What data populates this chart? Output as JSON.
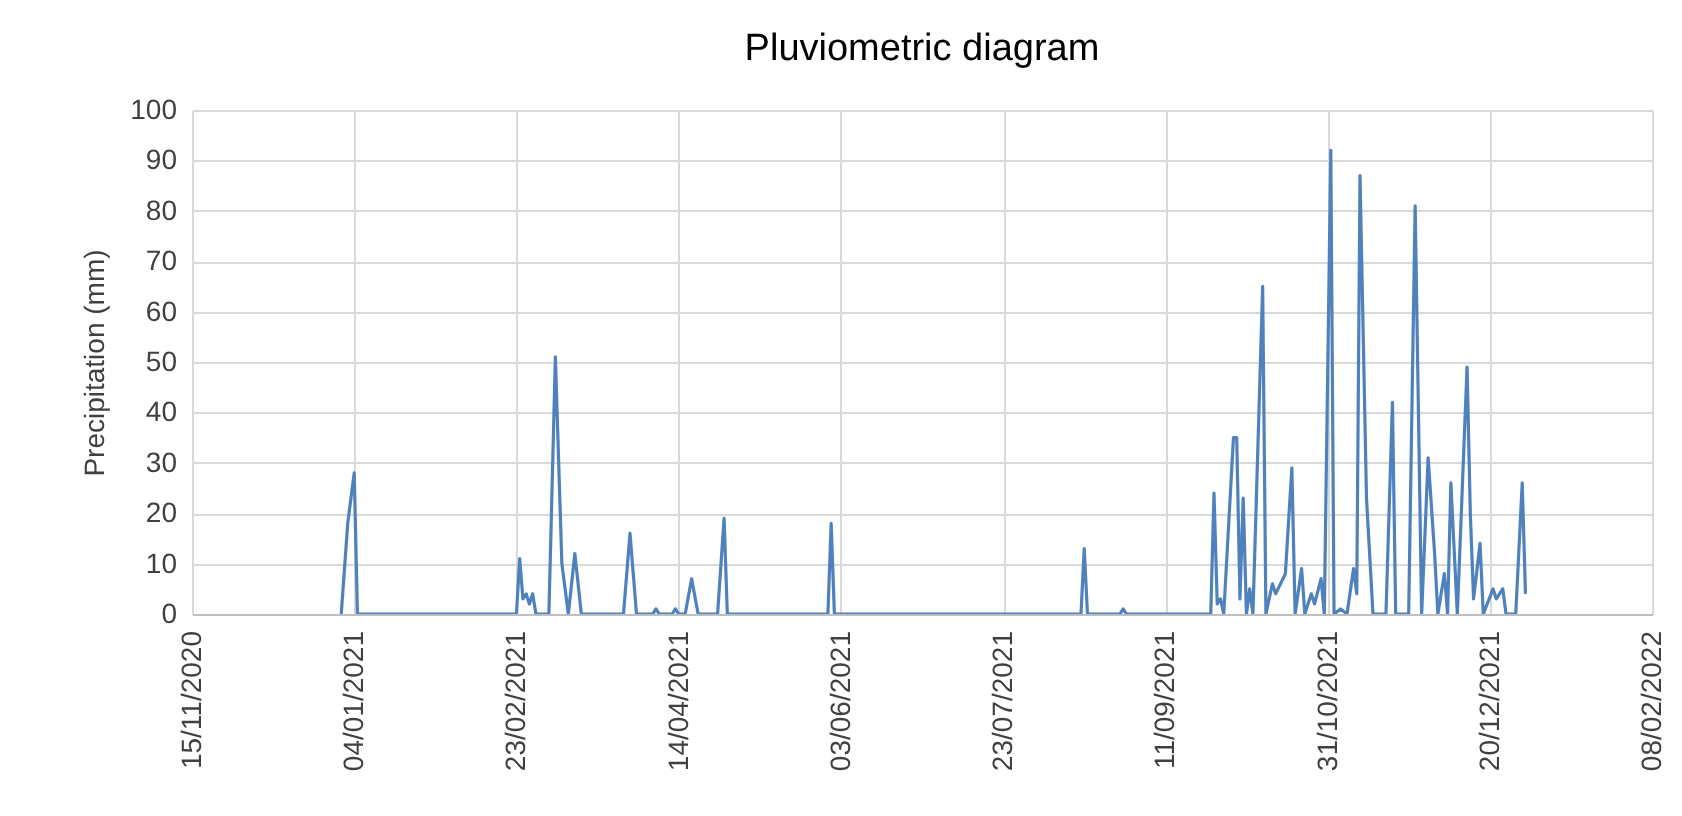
{
  "chart_data": {
    "type": "line",
    "title": "Pluviometric diagram",
    "ylabel": "Precipitation (mm)",
    "x": [
      "2020-12-31",
      "2021-01-02",
      "2021-01-04",
      "2021-01-05",
      "2021-02-23",
      "2021-02-24",
      "2021-02-25",
      "2021-02-26",
      "2021-02-27",
      "2021-02-28",
      "2021-03-01",
      "2021-03-05",
      "2021-03-07",
      "2021-03-09",
      "2021-03-11",
      "2021-03-13",
      "2021-03-15",
      "2021-03-28",
      "2021-03-30",
      "2021-04-01",
      "2021-04-06",
      "2021-04-07",
      "2021-04-08",
      "2021-04-12",
      "2021-04-13",
      "2021-04-14",
      "2021-04-16",
      "2021-04-18",
      "2021-04-20",
      "2021-04-26",
      "2021-04-28",
      "2021-04-29",
      "2021-05-30",
      "2021-05-31",
      "2021-06-01",
      "2021-08-16",
      "2021-08-17",
      "2021-08-18",
      "2021-08-28",
      "2021-08-29",
      "2021-08-30",
      "2021-09-25",
      "2021-09-26",
      "2021-09-27",
      "2021-09-28",
      "2021-09-29",
      "2021-10-02",
      "2021-10-03",
      "2021-10-04",
      "2021-10-05",
      "2021-10-06",
      "2021-10-07",
      "2021-10-08",
      "2021-10-11",
      "2021-10-12",
      "2021-10-14",
      "2021-10-15",
      "2021-10-18",
      "2021-10-20",
      "2021-10-21",
      "2021-10-23",
      "2021-10-24",
      "2021-10-26",
      "2021-10-27",
      "2021-10-29",
      "2021-10-30",
      "2021-11-01",
      "2021-11-02",
      "2021-11-04",
      "2021-11-06",
      "2021-11-08",
      "2021-11-09",
      "2021-11-10",
      "2021-11-12",
      "2021-11-14",
      "2021-11-18",
      "2021-11-20",
      "2021-11-21",
      "2021-11-25",
      "2021-11-27",
      "2021-11-29",
      "2021-12-01",
      "2021-12-03",
      "2021-12-04",
      "2021-12-06",
      "2021-12-07",
      "2021-12-08",
      "2021-12-10",
      "2021-12-13",
      "2021-12-14",
      "2021-12-15",
      "2021-12-17",
      "2021-12-18",
      "2021-12-21",
      "2021-12-22",
      "2021-12-24",
      "2021-12-25",
      "2021-12-28",
      "2021-12-30",
      "2021-12-31"
    ],
    "series": [
      {
        "color": "#4f81bd",
        "values": [
          0,
          18,
          28,
          0,
          0,
          11,
          3,
          4,
          2,
          4,
          0,
          0,
          51,
          10,
          0,
          12,
          0,
          0,
          16,
          0,
          0,
          1,
          0,
          0,
          1,
          0,
          0,
          7,
          0,
          0,
          19,
          0,
          0,
          18,
          0,
          0,
          13,
          0,
          0,
          1,
          0,
          0,
          24,
          2,
          3,
          0,
          35,
          35,
          3,
          23,
          0,
          5,
          0,
          65,
          0,
          6,
          4,
          8,
          29,
          0,
          9,
          0,
          4,
          2,
          7,
          0,
          92,
          0,
          1,
          0,
          9,
          4,
          87,
          23,
          0,
          0,
          42,
          0,
          0,
          81,
          0,
          31,
          12,
          0,
          8,
          0,
          26,
          0,
          49,
          20,
          3,
          14,
          0,
          5,
          3,
          5,
          0,
          0,
          26,
          4
        ]
      }
    ],
    "xlim": [
      "2020-11-15",
      "2022-02-08"
    ],
    "xticks": [
      {
        "value": "2020-11-15",
        "label": "15/11/2020"
      },
      {
        "value": "2021-01-04",
        "label": "04/01/2021"
      },
      {
        "value": "2021-02-23",
        "label": "23/02/2021"
      },
      {
        "value": "2021-04-14",
        "label": "14/04/2021"
      },
      {
        "value": "2021-06-03",
        "label": "03/06/2021"
      },
      {
        "value": "2021-07-23",
        "label": "23/07/2021"
      },
      {
        "value": "2021-09-11",
        "label": "11/09/2021"
      },
      {
        "value": "2021-10-31",
        "label": "31/10/2021"
      },
      {
        "value": "2021-12-20",
        "label": "20/12/2021"
      },
      {
        "value": "2022-02-08",
        "label": "08/02/2022"
      }
    ],
    "ylim": [
      0,
      100
    ],
    "yticks": [
      0,
      10,
      20,
      30,
      40,
      50,
      60,
      70,
      80,
      90,
      100
    ],
    "grid": true,
    "legend": false,
    "marker": "none",
    "line_style": "solid"
  }
}
